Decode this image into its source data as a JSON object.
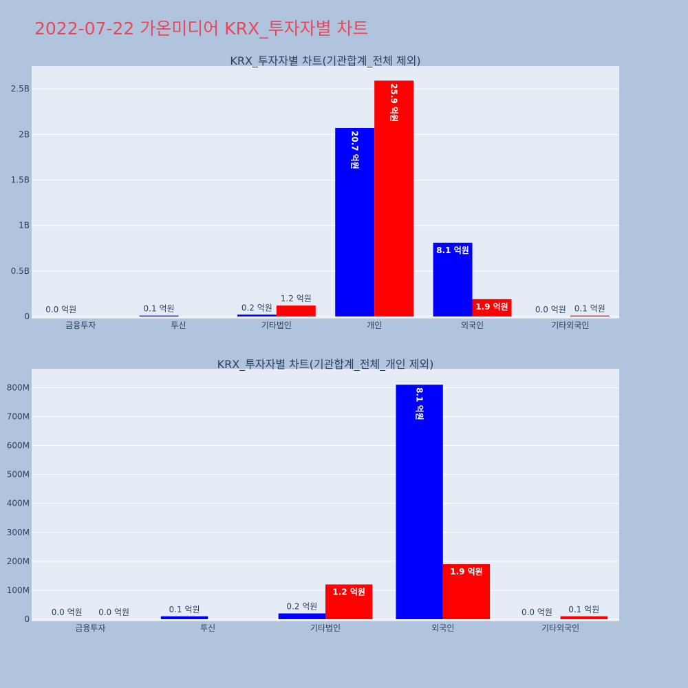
{
  "title": "2022-07-22 가온미디어 KRX_투자자별 차트",
  "colors": {
    "series1": "#0000ff",
    "series2": "#ff0000",
    "plot_bg": "#e5ecf6",
    "page_bg": "#b0c4de",
    "title": "#e8485a"
  },
  "chart_data": [
    {
      "type": "bar",
      "title": "KRX_투자자별 차트(기관합계_전체 제외)",
      "categories": [
        "금융투자",
        "투신",
        "기타법인",
        "개인",
        "외국인",
        "기타외국인"
      ],
      "ylim": [
        0,
        2750000000
      ],
      "yticks": [
        0,
        500000000,
        1000000000,
        1500000000,
        2000000000,
        2500000000
      ],
      "ytick_labels": [
        "0",
        "0.5B",
        "1B",
        "1.5B",
        "2B",
        "2.5B"
      ],
      "series": [
        {
          "values": [
            0,
            10000000,
            20000000,
            2070000000,
            810000000,
            0
          ],
          "labels": [
            "0.0 억원",
            "0.1 억원",
            "0.2 억원",
            "20.7 억원",
            "8.1 억원",
            "0.0 억원"
          ]
        },
        {
          "values": [
            null,
            null,
            120000000,
            2590000000,
            190000000,
            10000000
          ],
          "labels": [
            null,
            null,
            "1.2 억원",
            "25.9 억원",
            "1.9 억원",
            "0.1 억원"
          ]
        }
      ]
    },
    {
      "type": "bar",
      "title": "KRX_투자자별 차트(기관합계_전체_개인 제외)",
      "categories": [
        "금융투자",
        "투신",
        "기타법인",
        "외국인",
        "기타외국인"
      ],
      "ylim": [
        0,
        865000000
      ],
      "yticks": [
        0,
        100000000,
        200000000,
        300000000,
        400000000,
        500000000,
        600000000,
        700000000,
        800000000
      ],
      "ytick_labels": [
        "0",
        "100M",
        "200M",
        "300M",
        "400M",
        "500M",
        "600M",
        "700M",
        "800M"
      ],
      "series": [
        {
          "values": [
            0,
            10000000,
            20000000,
            810000000,
            0
          ],
          "labels": [
            "0.0 억원",
            "0.1 억원",
            "0.2 억원",
            "8.1 억원",
            "0.0 억원"
          ]
        },
        {
          "values": [
            0,
            null,
            120000000,
            190000000,
            10000000
          ],
          "labels": [
            "0.0 억원",
            null,
            "1.2 억원",
            "1.9 억원",
            "0.1 억원"
          ]
        }
      ]
    }
  ]
}
